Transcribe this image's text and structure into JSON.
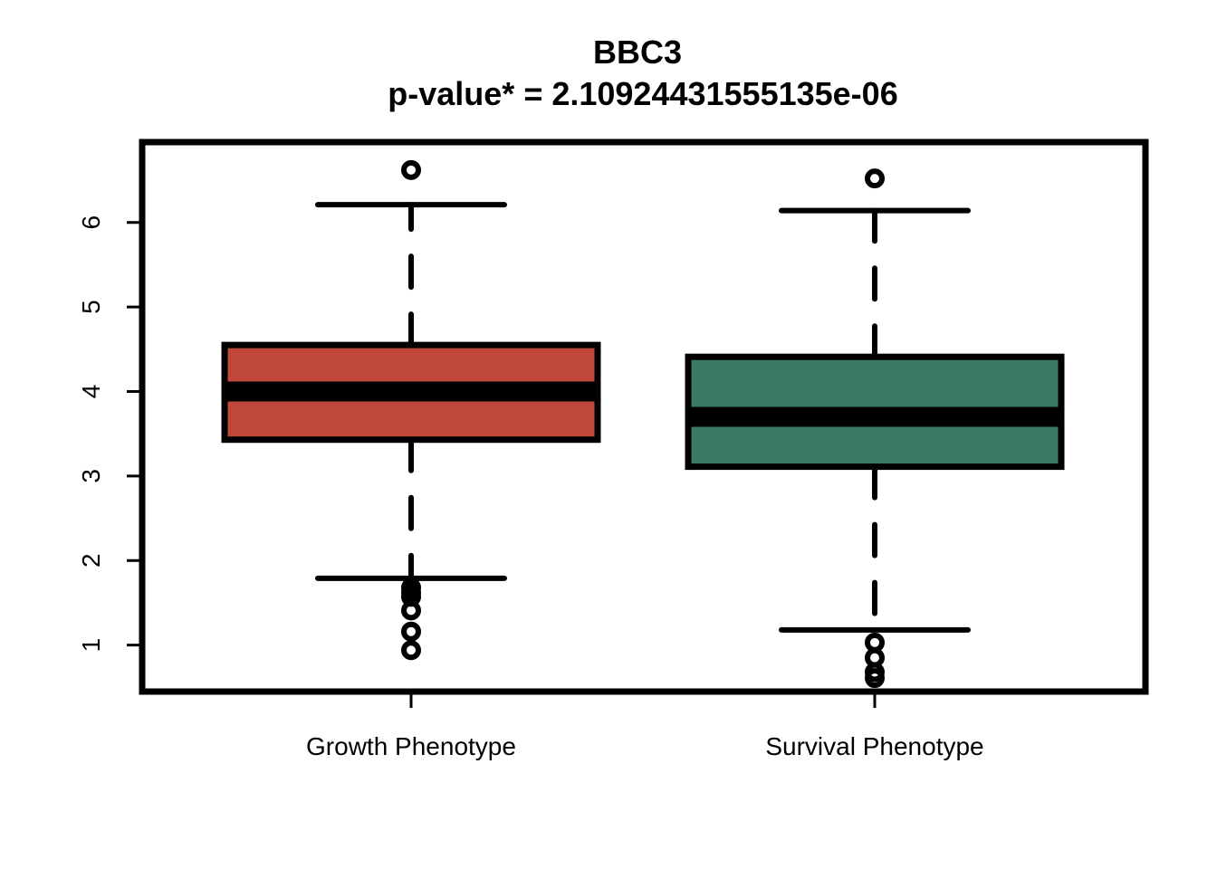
{
  "chart_data": {
    "type": "boxplot",
    "title": "BBC3",
    "subtitle": "p-value* = 2.10924431555135e-06",
    "xlabel": "",
    "ylabel": "",
    "ylim": [
      0.45,
      6.95
    ],
    "yticks": [
      1,
      2,
      3,
      4,
      5,
      6
    ],
    "grid": false,
    "categories": [
      "Growth Phenotype",
      "Survival Phenotype"
    ],
    "boxes": [
      {
        "category": "Growth Phenotype",
        "color": "#c0483a",
        "whisker_low": 1.79,
        "q1": 3.43,
        "median": 4.0,
        "q3": 4.55,
        "whisker_high": 6.21,
        "outliers": [
          6.62,
          1.68,
          1.62,
          1.57,
          1.41,
          1.16,
          0.94
        ]
      },
      {
        "category": "Survival Phenotype",
        "color": "#3a7a62",
        "whisker_low": 1.18,
        "q1": 3.11,
        "median": 3.7,
        "q3": 4.41,
        "whisker_high": 6.14,
        "outliers": [
          6.52,
          1.03,
          0.85,
          0.68,
          0.61
        ]
      }
    ]
  }
}
